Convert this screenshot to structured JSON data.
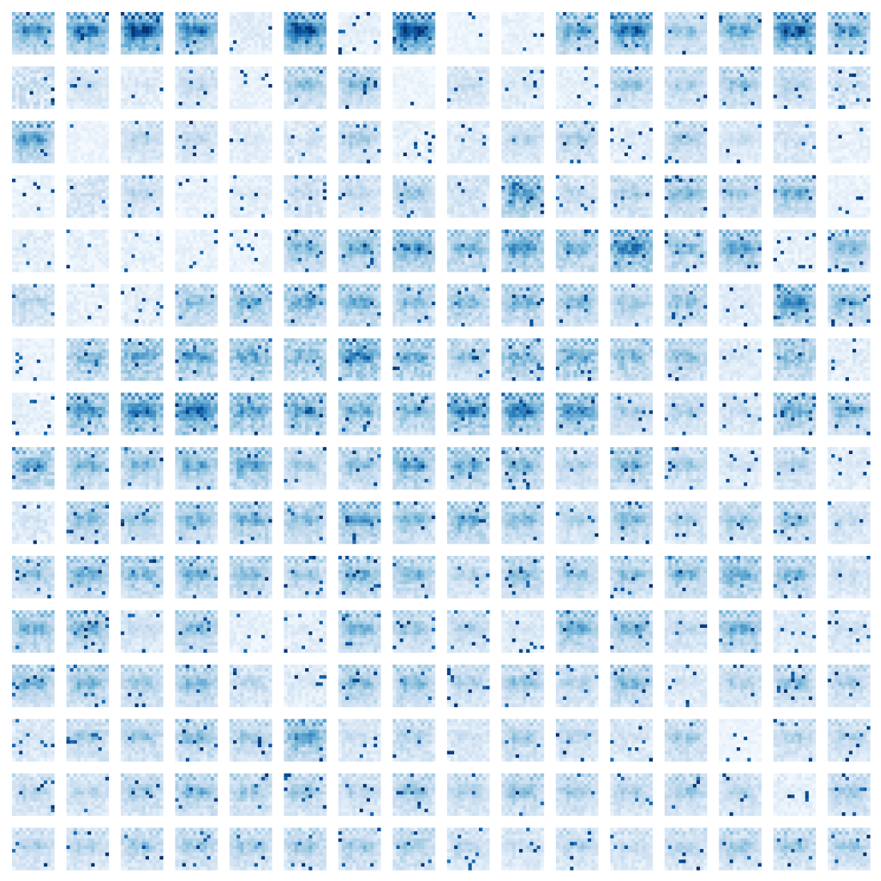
{
  "chart_data": {
    "type": "heatmap",
    "layout": "small-multiples",
    "rows": 16,
    "cols": 16,
    "cell_grid": [
      12,
      12
    ],
    "colormap": "Blues",
    "value_range": [
      0,
      1
    ],
    "axes_visible": false,
    "grid": false,
    "legend": "none",
    "colors": {
      "low": "#f7fbff",
      "mid": "#6baed6",
      "high": "#08306b",
      "background": "#ffffff"
    },
    "template_pattern": [
      [
        0.55,
        0.12,
        0.6,
        0.15,
        0.55,
        0.2,
        0.15,
        0.55,
        0.2,
        0.6,
        0.15,
        0.55
      ],
      [
        0.2,
        0.65,
        0.25,
        0.7,
        0.2,
        0.65,
        0.25,
        0.2,
        0.65,
        0.25,
        0.7,
        0.2
      ],
      [
        0.3,
        0.35,
        0.4,
        0.35,
        0.3,
        0.35,
        0.4,
        0.35,
        0.3,
        0.35,
        0.3,
        0.25
      ],
      [
        0.35,
        0.45,
        0.55,
        0.6,
        0.5,
        0.55,
        0.6,
        0.55,
        0.5,
        0.45,
        0.4,
        0.35
      ],
      [
        0.4,
        0.5,
        0.6,
        0.8,
        0.75,
        0.6,
        0.8,
        0.85,
        0.7,
        0.55,
        0.45,
        0.4
      ],
      [
        0.35,
        0.5,
        0.65,
        0.85,
        0.7,
        0.65,
        0.75,
        0.9,
        0.8,
        0.6,
        0.45,
        0.35
      ],
      [
        0.3,
        0.45,
        0.55,
        0.7,
        0.6,
        0.55,
        0.65,
        0.7,
        0.6,
        0.5,
        0.4,
        0.3
      ],
      [
        0.25,
        0.35,
        0.45,
        0.55,
        0.4,
        0.35,
        0.45,
        0.4,
        0.35,
        0.4,
        0.3,
        0.25
      ],
      [
        0.2,
        0.3,
        0.4,
        0.45,
        0.3,
        0.25,
        0.4,
        0.3,
        0.25,
        0.35,
        0.25,
        0.2
      ],
      [
        0.25,
        0.3,
        0.35,
        0.3,
        0.35,
        0.3,
        0.35,
        0.3,
        0.35,
        0.3,
        0.35,
        0.25
      ],
      [
        0.2,
        0.25,
        0.3,
        0.25,
        0.2,
        0.25,
        0.3,
        0.25,
        0.2,
        0.25,
        0.3,
        0.2
      ],
      [
        0.15,
        0.2,
        0.25,
        0.2,
        0.15,
        0.2,
        0.25,
        0.2,
        0.15,
        0.2,
        0.25,
        0.15
      ]
    ],
    "panels": [
      [
        [
          0.65,
          0.8
        ],
        [
          0.7,
          0.9
        ],
        [
          0.85,
          0.95
        ],
        [
          0.7,
          0.85
        ],
        [
          0.35,
          0.15
        ],
        [
          0.8,
          1.0
        ],
        [
          0.3,
          0.1
        ],
        [
          0.85,
          1.0
        ],
        [
          0.2,
          0.05
        ],
        [
          0.25,
          0.05
        ],
        [
          0.6,
          0.75
        ],
        [
          0.75,
          0.9
        ],
        [
          0.5,
          0.6
        ],
        [
          0.6,
          0.75
        ],
        [
          0.8,
          0.9
        ],
        [
          0.6,
          0.8
        ]
      ],
      [
        [
          0.6,
          0.1
        ],
        [
          0.35,
          0.5
        ],
        [
          0.35,
          0.2
        ],
        [
          0.4,
          0.5
        ],
        [
          0.25,
          0.1
        ],
        [
          0.55,
          0.6
        ],
        [
          0.5,
          0.7
        ],
        [
          0.2,
          0.05
        ],
        [
          0.4,
          0.4
        ],
        [
          0.35,
          0.3
        ],
        [
          0.3,
          0.1
        ],
        [
          0.5,
          0.6
        ],
        [
          0.45,
          0.55
        ],
        [
          0.5,
          0.6
        ],
        [
          0.45,
          0.55
        ],
        [
          0.55,
          0.2
        ]
      ],
      [
        [
          0.6,
          0.8
        ],
        [
          0.2,
          0.05
        ],
        [
          0.4,
          0.5
        ],
        [
          0.35,
          0.55
        ],
        [
          0.3,
          0.25
        ],
        [
          0.45,
          0.15
        ],
        [
          0.45,
          0.6
        ],
        [
          0.3,
          0.05
        ],
        [
          0.35,
          0.2
        ],
        [
          0.4,
          0.55
        ],
        [
          0.45,
          0.6
        ],
        [
          0.35,
          0.1
        ],
        [
          0.45,
          0.6
        ],
        [
          0.35,
          0.45
        ],
        [
          0.45,
          0.25
        ],
        [
          0.3,
          0.05
        ]
      ],
      [
        [
          0.25,
          0.05
        ],
        [
          0.5,
          0.1
        ],
        [
          0.4,
          0.5
        ],
        [
          0.25,
          0.1
        ],
        [
          0.3,
          0.2
        ],
        [
          0.45,
          0.35
        ],
        [
          0.4,
          0.5
        ],
        [
          0.5,
          0.6
        ],
        [
          0.45,
          0.3
        ],
        [
          0.75,
          0.6
        ],
        [
          0.45,
          0.4
        ],
        [
          0.5,
          0.5
        ],
        [
          0.55,
          0.65
        ],
        [
          0.5,
          0.6
        ],
        [
          0.55,
          0.7
        ],
        [
          0.25,
          0.1
        ]
      ],
      [
        [
          0.35,
          0.1
        ],
        [
          0.3,
          0.05
        ],
        [
          0.3,
          0.05
        ],
        [
          0.25,
          0.05
        ],
        [
          0.25,
          0.05
        ],
        [
          0.55,
          0.7
        ],
        [
          0.6,
          0.7
        ],
        [
          0.65,
          0.75
        ],
        [
          0.6,
          0.6
        ],
        [
          0.75,
          0.65
        ],
        [
          0.65,
          0.55
        ],
        [
          0.8,
          0.7
        ],
        [
          0.6,
          0.5
        ],
        [
          0.6,
          0.8
        ],
        [
          0.3,
          0.05
        ],
        [
          0.55,
          0.7
        ]
      ],
      [
        [
          0.55,
          0.3
        ],
        [
          0.3,
          0.05
        ],
        [
          0.35,
          0.1
        ],
        [
          0.6,
          0.5
        ],
        [
          0.6,
          0.65
        ],
        [
          0.7,
          0.55
        ],
        [
          0.65,
          0.6
        ],
        [
          0.55,
          0.6
        ],
        [
          0.6,
          0.55
        ],
        [
          0.6,
          0.6
        ],
        [
          0.55,
          0.65
        ],
        [
          0.5,
          0.6
        ],
        [
          0.55,
          0.6
        ],
        [
          0.35,
          0.25
        ],
        [
          0.7,
          0.8
        ],
        [
          0.55,
          0.7
        ]
      ],
      [
        [
          0.25,
          0.05
        ],
        [
          0.7,
          0.4
        ],
        [
          0.8,
          0.45
        ],
        [
          0.7,
          0.6
        ],
        [
          0.75,
          0.5
        ],
        [
          0.75,
          0.4
        ],
        [
          0.8,
          0.6
        ],
        [
          0.75,
          0.5
        ],
        [
          0.55,
          0.55
        ],
        [
          0.7,
          0.5
        ],
        [
          0.8,
          0.45
        ],
        [
          0.65,
          0.5
        ],
        [
          0.55,
          0.55
        ],
        [
          0.35,
          0.3
        ],
        [
          0.7,
          0.4
        ],
        [
          0.35,
          0.15
        ]
      ],
      [
        [
          0.3,
          0.1
        ],
        [
          0.7,
          0.7
        ],
        [
          0.8,
          0.75
        ],
        [
          0.85,
          0.75
        ],
        [
          0.75,
          0.6
        ],
        [
          0.7,
          0.65
        ],
        [
          0.65,
          0.6
        ],
        [
          0.6,
          0.6
        ],
        [
          0.75,
          0.7
        ],
        [
          0.8,
          0.75
        ],
        [
          0.75,
          0.65
        ],
        [
          0.45,
          0.6
        ],
        [
          0.45,
          0.55
        ],
        [
          0.4,
          0.35
        ],
        [
          0.65,
          0.6
        ],
        [
          0.55,
          0.7
        ]
      ],
      [
        [
          0.7,
          0.55
        ],
        [
          0.55,
          0.7
        ],
        [
          0.55,
          0.65
        ],
        [
          0.6,
          0.7
        ],
        [
          0.7,
          0.6
        ],
        [
          0.45,
          0.6
        ],
        [
          0.55,
          0.6
        ],
        [
          0.65,
          0.65
        ],
        [
          0.6,
          0.7
        ],
        [
          0.55,
          0.7
        ],
        [
          0.45,
          0.55
        ],
        [
          0.6,
          0.6
        ],
        [
          0.5,
          0.5
        ],
        [
          0.35,
          0.35
        ],
        [
          0.45,
          0.55
        ],
        [
          0.35,
          0.2
        ]
      ],
      [
        [
          0.4,
          0.2
        ],
        [
          0.55,
          0.65
        ],
        [
          0.5,
          0.65
        ],
        [
          0.55,
          0.7
        ],
        [
          0.6,
          0.65
        ],
        [
          0.6,
          0.55
        ],
        [
          0.65,
          0.7
        ],
        [
          0.55,
          0.65
        ],
        [
          0.6,
          0.65
        ],
        [
          0.55,
          0.65
        ],
        [
          0.45,
          0.55
        ],
        [
          0.55,
          0.65
        ],
        [
          0.45,
          0.55
        ],
        [
          0.5,
          0.6
        ],
        [
          0.5,
          0.65
        ],
        [
          0.4,
          0.45
        ]
      ],
      [
        [
          0.55,
          0.55
        ],
        [
          0.6,
          0.7
        ],
        [
          0.65,
          0.55
        ],
        [
          0.6,
          0.65
        ],
        [
          0.55,
          0.65
        ],
        [
          0.5,
          0.55
        ],
        [
          0.6,
          0.65
        ],
        [
          0.55,
          0.65
        ],
        [
          0.45,
          0.5
        ],
        [
          0.55,
          0.6
        ],
        [
          0.5,
          0.6
        ],
        [
          0.55,
          0.55
        ],
        [
          0.6,
          0.6
        ],
        [
          0.65,
          0.6
        ],
        [
          0.55,
          0.65
        ],
        [
          0.4,
          0.4
        ]
      ],
      [
        [
          0.6,
          0.65
        ],
        [
          0.6,
          0.7
        ],
        [
          0.4,
          0.4
        ],
        [
          0.55,
          0.65
        ],
        [
          0.3,
          0.1
        ],
        [
          0.35,
          0.15
        ],
        [
          0.55,
          0.7
        ],
        [
          0.5,
          0.6
        ],
        [
          0.45,
          0.55
        ],
        [
          0.35,
          0.3
        ],
        [
          0.6,
          0.7
        ],
        [
          0.55,
          0.7
        ],
        [
          0.45,
          0.4
        ],
        [
          0.6,
          0.7
        ],
        [
          0.35,
          0.3
        ],
        [
          0.4,
          0.35
        ]
      ],
      [
        [
          0.55,
          0.7
        ],
        [
          0.55,
          0.7
        ],
        [
          0.5,
          0.6
        ],
        [
          0.55,
          0.65
        ],
        [
          0.45,
          0.45
        ],
        [
          0.35,
          0.25
        ],
        [
          0.55,
          0.65
        ],
        [
          0.55,
          0.65
        ],
        [
          0.45,
          0.55
        ],
        [
          0.5,
          0.6
        ],
        [
          0.45,
          0.5
        ],
        [
          0.55,
          0.65
        ],
        [
          0.35,
          0.3
        ],
        [
          0.45,
          0.55
        ],
        [
          0.5,
          0.6
        ],
        [
          0.45,
          0.55
        ]
      ],
      [
        [
          0.4,
          0.3
        ],
        [
          0.5,
          0.55
        ],
        [
          0.5,
          0.55
        ],
        [
          0.55,
          0.6
        ],
        [
          0.5,
          0.55
        ],
        [
          0.7,
          0.65
        ],
        [
          0.4,
          0.35
        ],
        [
          0.5,
          0.45
        ],
        [
          0.4,
          0.3
        ],
        [
          0.5,
          0.5
        ],
        [
          0.45,
          0.45
        ],
        [
          0.4,
          0.3
        ],
        [
          0.5,
          0.55
        ],
        [
          0.2,
          0.1
        ],
        [
          0.45,
          0.5
        ],
        [
          0.45,
          0.5
        ]
      ],
      [
        [
          0.45,
          0.5
        ],
        [
          0.45,
          0.45
        ],
        [
          0.5,
          0.55
        ],
        [
          0.55,
          0.65
        ],
        [
          0.5,
          0.55
        ],
        [
          0.5,
          0.6
        ],
        [
          0.45,
          0.45
        ],
        [
          0.5,
          0.6
        ],
        [
          0.45,
          0.55
        ],
        [
          0.55,
          0.6
        ],
        [
          0.5,
          0.55
        ],
        [
          0.45,
          0.55
        ],
        [
          0.5,
          0.55
        ],
        [
          0.45,
          0.45
        ],
        [
          0.3,
          0.15
        ],
        [
          0.5,
          0.55
        ]
      ],
      [
        [
          0.45,
          0.5
        ],
        [
          0.45,
          0.5
        ],
        [
          0.5,
          0.55
        ],
        [
          0.5,
          0.55
        ],
        [
          0.5,
          0.55
        ],
        [
          0.5,
          0.55
        ],
        [
          0.5,
          0.55
        ],
        [
          0.5,
          0.55
        ],
        [
          0.45,
          0.45
        ],
        [
          0.4,
          0.4
        ],
        [
          0.45,
          0.45
        ],
        [
          0.4,
          0.4
        ],
        [
          0.45,
          0.5
        ],
        [
          0.5,
          0.55
        ],
        [
          0.5,
          0.55
        ],
        [
          0.5,
          0.55
        ]
      ]
    ]
  }
}
